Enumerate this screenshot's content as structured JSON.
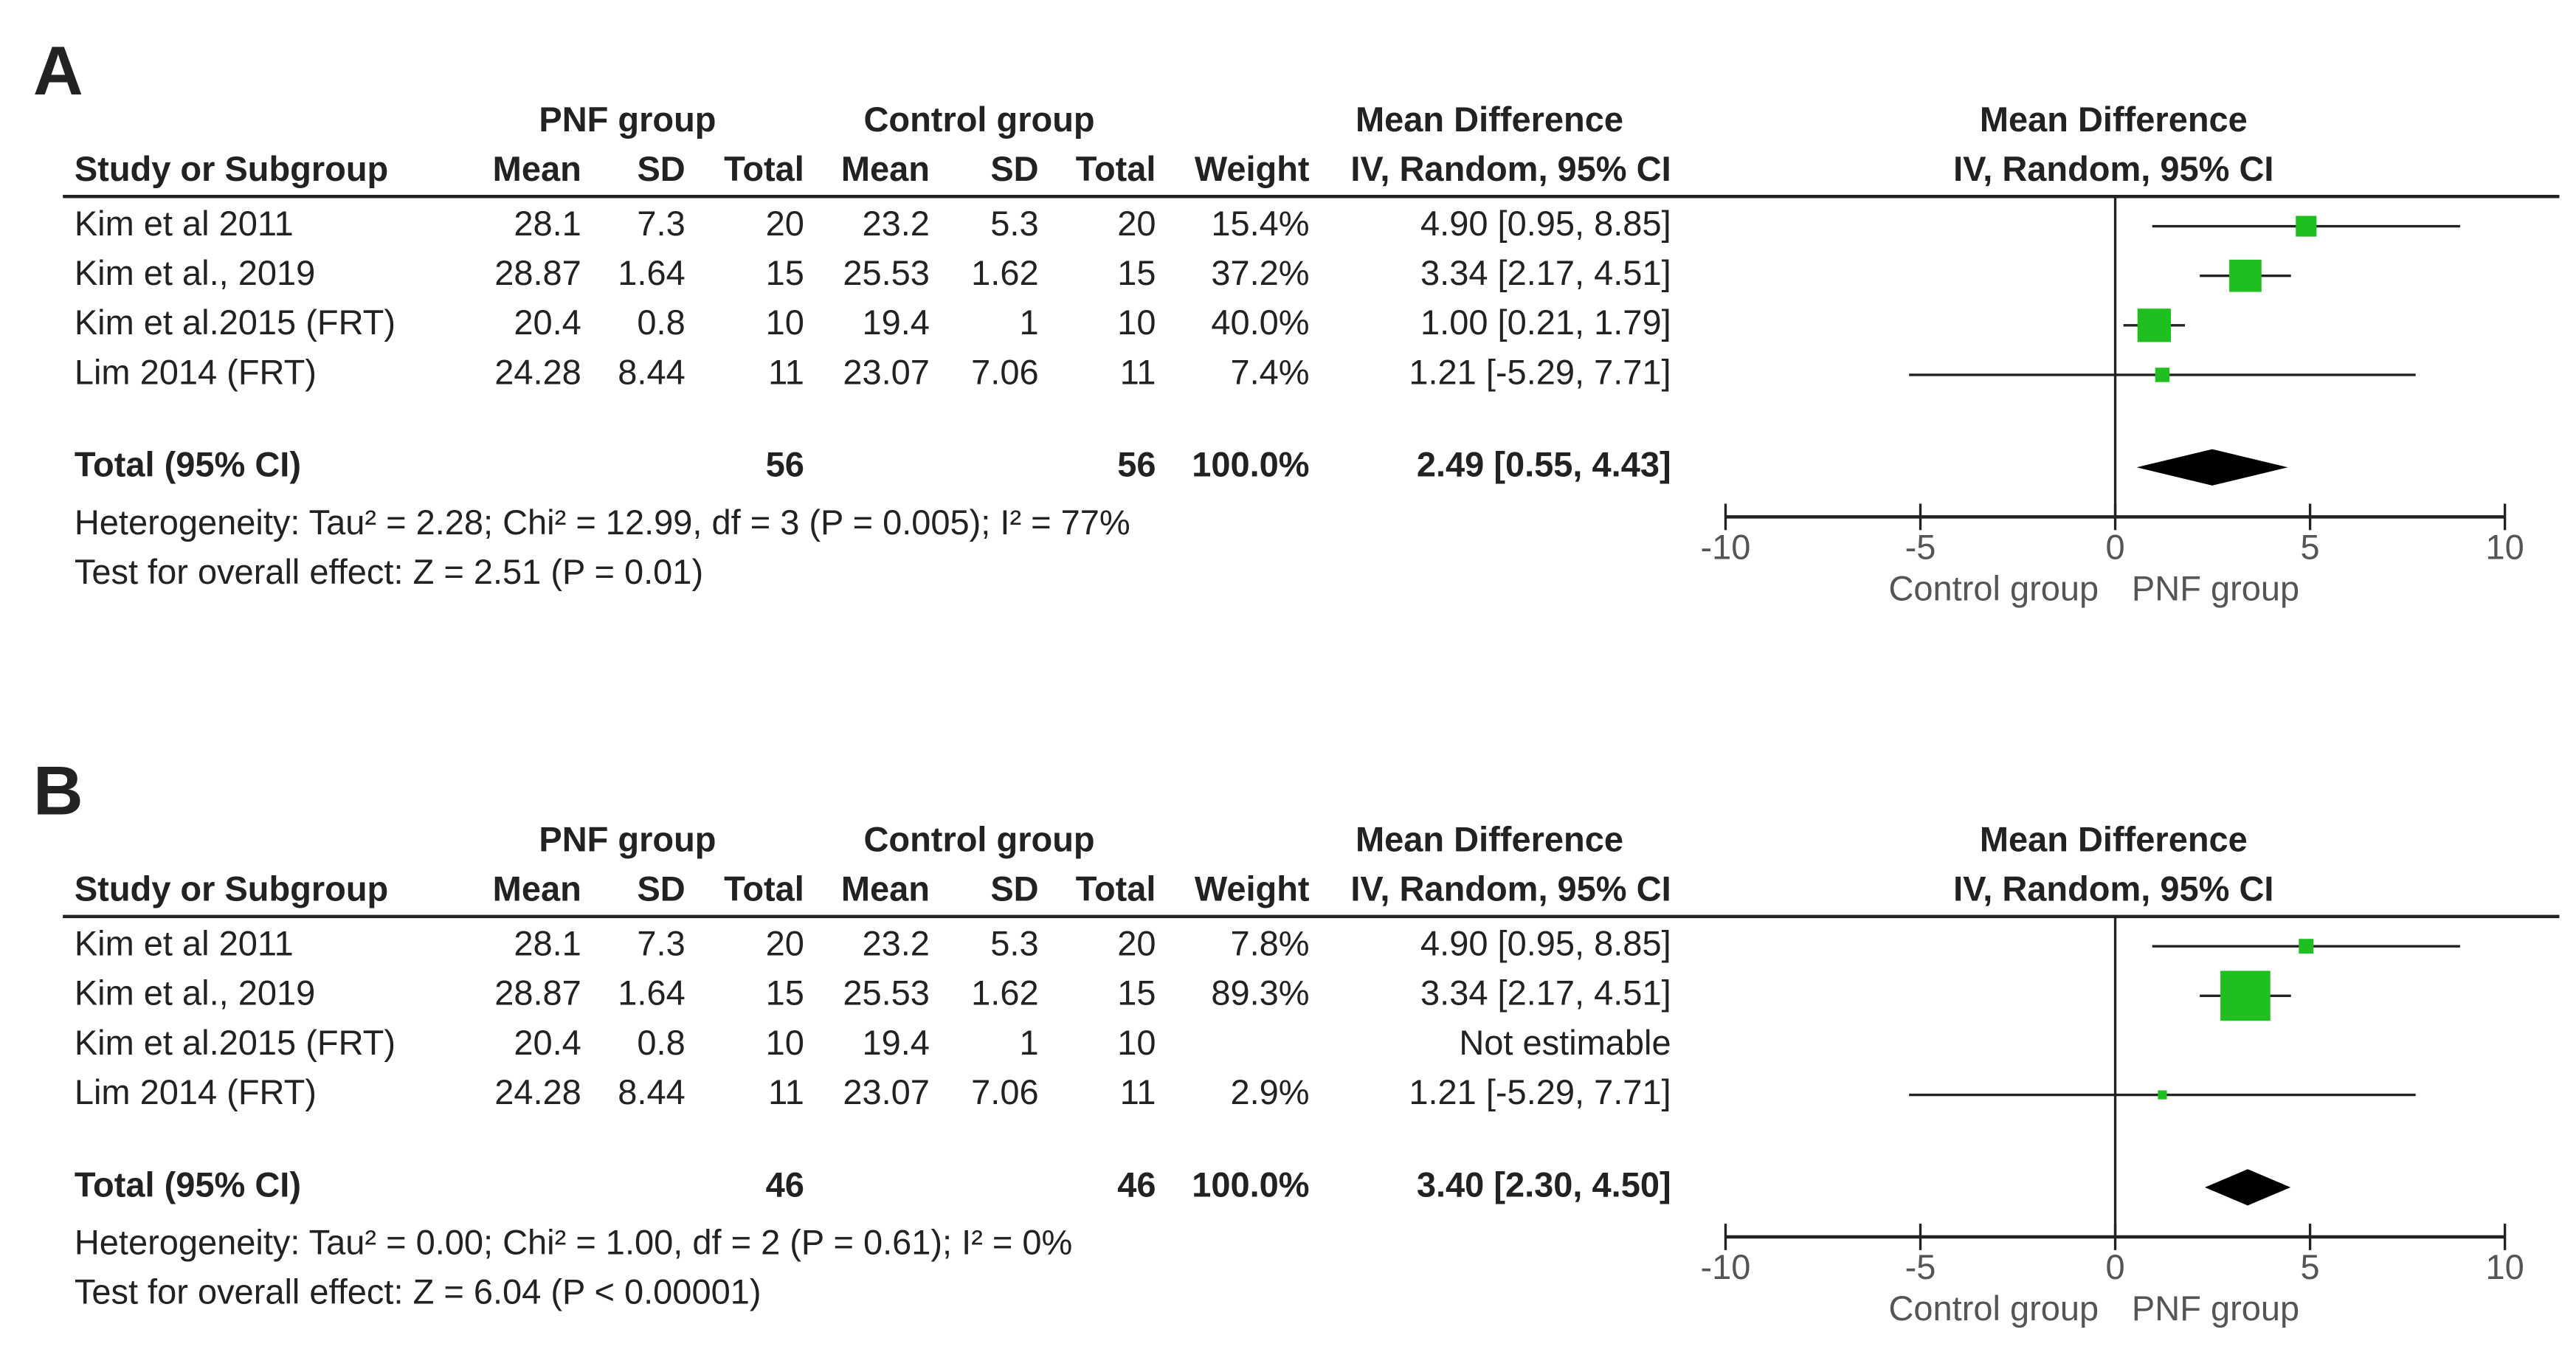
{
  "chart_data": [
    {
      "type": "forest",
      "label": "A",
      "group_headers": [
        "PNF group",
        "Control group",
        "Mean Difference"
      ],
      "columns": [
        "Study or Subgroup",
        "Mean",
        "SD",
        "Total",
        "Mean",
        "SD",
        "Total",
        "Weight",
        "IV, Random, 95% CI"
      ],
      "plot_title": "Mean Difference",
      "plot_subtitle": "IV, Random, 95% CI",
      "rows": [
        [
          "Kim et al 2011",
          "28.1",
          "7.3",
          "20",
          "23.2",
          "5.3",
          "20"
        ],
        [
          "Kim et al., 2019",
          "28.87",
          "1.64",
          "15",
          "25.53",
          "1.62",
          "15"
        ],
        [
          "Kim et al.2015 (FRT)",
          "20.4",
          "0.8",
          "10",
          "19.4",
          "1",
          "10"
        ],
        [
          "Lim 2014 (FRT)",
          "24.28",
          "8.44",
          "11",
          "23.07",
          "7.06",
          "11"
        ]
      ],
      "weights": [
        15.4,
        37.2,
        40.0,
        7.4
      ],
      "weight_labels": [
        "15.4%",
        "37.2%",
        "40.0%",
        "7.4%"
      ],
      "values": [
        4.9,
        3.34,
        1.0,
        1.21
      ],
      "ci_low": [
        0.95,
        2.17,
        0.21,
        -5.29
      ],
      "ci_high": [
        8.85,
        4.51,
        1.79,
        7.71
      ],
      "value_labels": [
        "4.90 [0.95, 8.85]",
        "3.34 [2.17, 4.51]",
        "1.00 [0.21, 1.79]",
        "1.21 [-5.29, 7.71]"
      ],
      "total": {
        "name": "Total (95% CI)",
        "exp_total": 56,
        "ctrl_total": 56,
        "weight": 100.0,
        "weight_label": "100.0%",
        "value": 2.49,
        "ci_low": 0.55,
        "ci_high": 4.43,
        "value_label": "2.49 [0.55, 4.43]"
      },
      "heterogeneity": "Heterogeneity: Tau² = 2.28; Chi² = 12.99, df = 3 (P = 0.005); I² = 77%",
      "overall_effect": "Test for overall effect: Z = 2.51 (P = 0.01)",
      "xlim": [
        -10,
        10
      ],
      "xticks": [
        -10,
        -5,
        0,
        5,
        10
      ],
      "x_left_label": "Control group",
      "x_right_label": "PNF group",
      "color": "#1fbf1f"
    },
    {
      "type": "forest",
      "label": "B",
      "group_headers": [
        "PNF group",
        "Control group",
        "Mean Difference"
      ],
      "columns": [
        "Study or Subgroup",
        "Mean",
        "SD",
        "Total",
        "Mean",
        "SD",
        "Total",
        "Weight",
        "IV, Random, 95% CI"
      ],
      "plot_title": "Mean Difference",
      "plot_subtitle": "IV, Random, 95% CI",
      "rows": [
        [
          "Kim et al 2011",
          "28.1",
          "7.3",
          "20",
          "23.2",
          "5.3",
          "20"
        ],
        [
          "Kim et al., 2019",
          "28.87",
          "1.64",
          "15",
          "25.53",
          "1.62",
          "15"
        ],
        [
          "Kim et al.2015 (FRT)",
          "20.4",
          "0.8",
          "10",
          "19.4",
          "1",
          "10"
        ],
        [
          "Lim 2014 (FRT)",
          "24.28",
          "8.44",
          "11",
          "23.07",
          "7.06",
          "11"
        ]
      ],
      "weights": [
        7.8,
        89.3,
        null,
        2.9
      ],
      "weight_labels": [
        "7.8%",
        "89.3%",
        null,
        "2.9%"
      ],
      "values": [
        4.9,
        3.34,
        null,
        1.21
      ],
      "ci_low": [
        0.95,
        2.17,
        null,
        -5.29
      ],
      "ci_high": [
        8.85,
        4.51,
        null,
        7.71
      ],
      "value_labels": [
        "4.90 [0.95, 8.85]",
        "3.34 [2.17, 4.51]",
        "Not estimable",
        "1.21 [-5.29, 7.71]"
      ],
      "total": {
        "name": "Total (95% CI)",
        "exp_total": 46,
        "ctrl_total": 46,
        "weight": 100.0,
        "weight_label": "100.0%",
        "value": 3.4,
        "ci_low": 2.3,
        "ci_high": 4.5,
        "value_label": "3.40 [2.30, 4.50]"
      },
      "heterogeneity": "Heterogeneity: Tau² = 0.00; Chi² = 1.00, df = 2 (P = 0.61); I² = 0%",
      "overall_effect": "Test for overall effect: Z = 6.04 (P < 0.00001)",
      "xlim": [
        -10,
        10
      ],
      "xticks": [
        -10,
        -5,
        0,
        5,
        10
      ],
      "x_left_label": "Control group",
      "x_right_label": "PNF group",
      "color": "#1fbf1f"
    }
  ]
}
